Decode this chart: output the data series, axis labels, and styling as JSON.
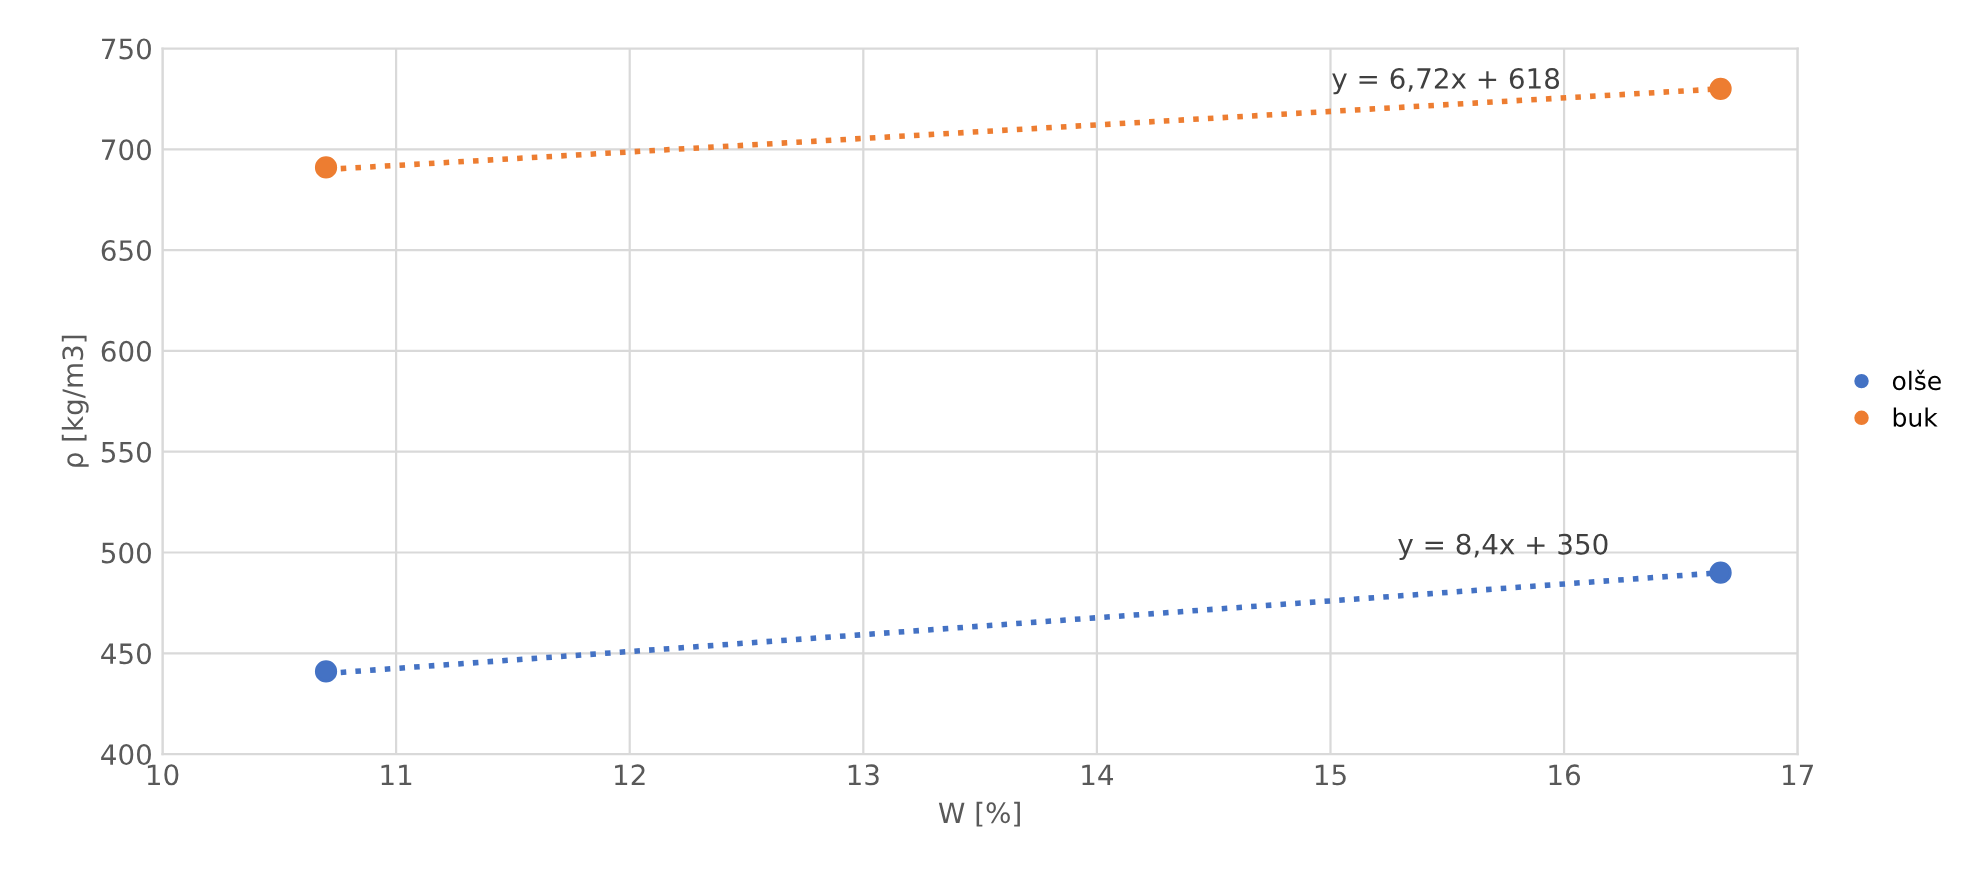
{
  "chart_data": {
    "type": "scatter",
    "xlabel": "W [%]",
    "ylabel": "ρ [kg/m3]",
    "xlim": [
      10,
      17
    ],
    "xticks": [
      10,
      11,
      12,
      13,
      14,
      15,
      16,
      17
    ],
    "ylim": [
      400,
      750
    ],
    "yticks": [
      400,
      450,
      500,
      550,
      600,
      650,
      700,
      750
    ],
    "grid": true,
    "legend": "right",
    "marker": "circle",
    "x": [
      10.7,
      16.67
    ],
    "series": [
      {
        "name": "olše",
        "color": "#4472c4",
        "values": [
          441,
          490
        ]
      },
      {
        "name": "buk",
        "color": "#ed7d31",
        "values": [
          691,
          730
        ]
      },
      {
        "type": "line",
        "line_style": "dotted",
        "marker": "none",
        "color": "#4472c4",
        "values": [
          440,
          490
        ]
      },
      {
        "type": "line",
        "line_style": "dotted",
        "marker": "none",
        "color": "#ed7d31",
        "values": [
          690,
          730
        ]
      }
    ],
    "annotations": [
      "y = 6,72x + 618",
      "y = 8,4x + 350"
    ]
  }
}
